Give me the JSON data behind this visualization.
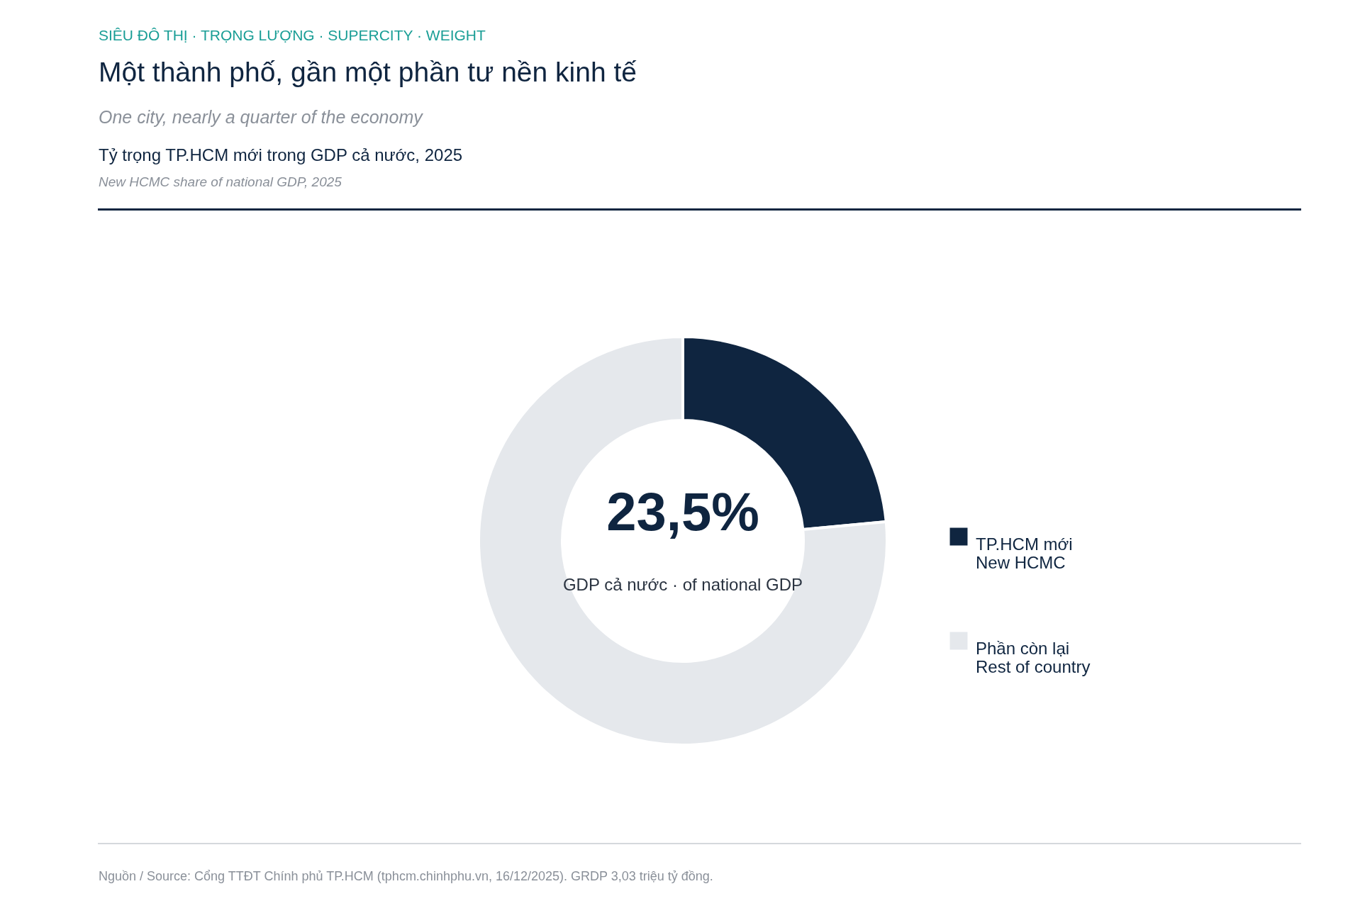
{
  "chart_data": {
    "type": "donut",
    "title": "Một thành phố, gần một phần tư nền kinh tế",
    "subtitle": "One city, nearly a quarter of the economy",
    "annotations": [
      "SIÊU ĐÔ THỊ · TRỌNG LƯỢNG  ·  SUPERCITY · WEIGHT",
      "Tỷ trọng TP.HCM mới trong GDP cả nước, 2025",
      "New HCMC share of national GDP, 2025",
      "GDP cả nước · of national GDP",
      "Nguồn / Source: Cổng TTĐT Chính phủ TP.HCM (tphcm.chinhphu.vn, 16/12/2025). GRDP 3,03 triệu tỷ đồng."
    ],
    "categories": [
      "TP.HCM mới\nNew HCMC",
      "Phần còn lại\nRest of country"
    ],
    "values": [
      23.5,
      76.5
    ],
    "colors": [
      "#0f2540",
      "#e5e8ec"
    ],
    "value_labels": [
      "23,5%",
      null
    ],
    "legend": "right"
  }
}
